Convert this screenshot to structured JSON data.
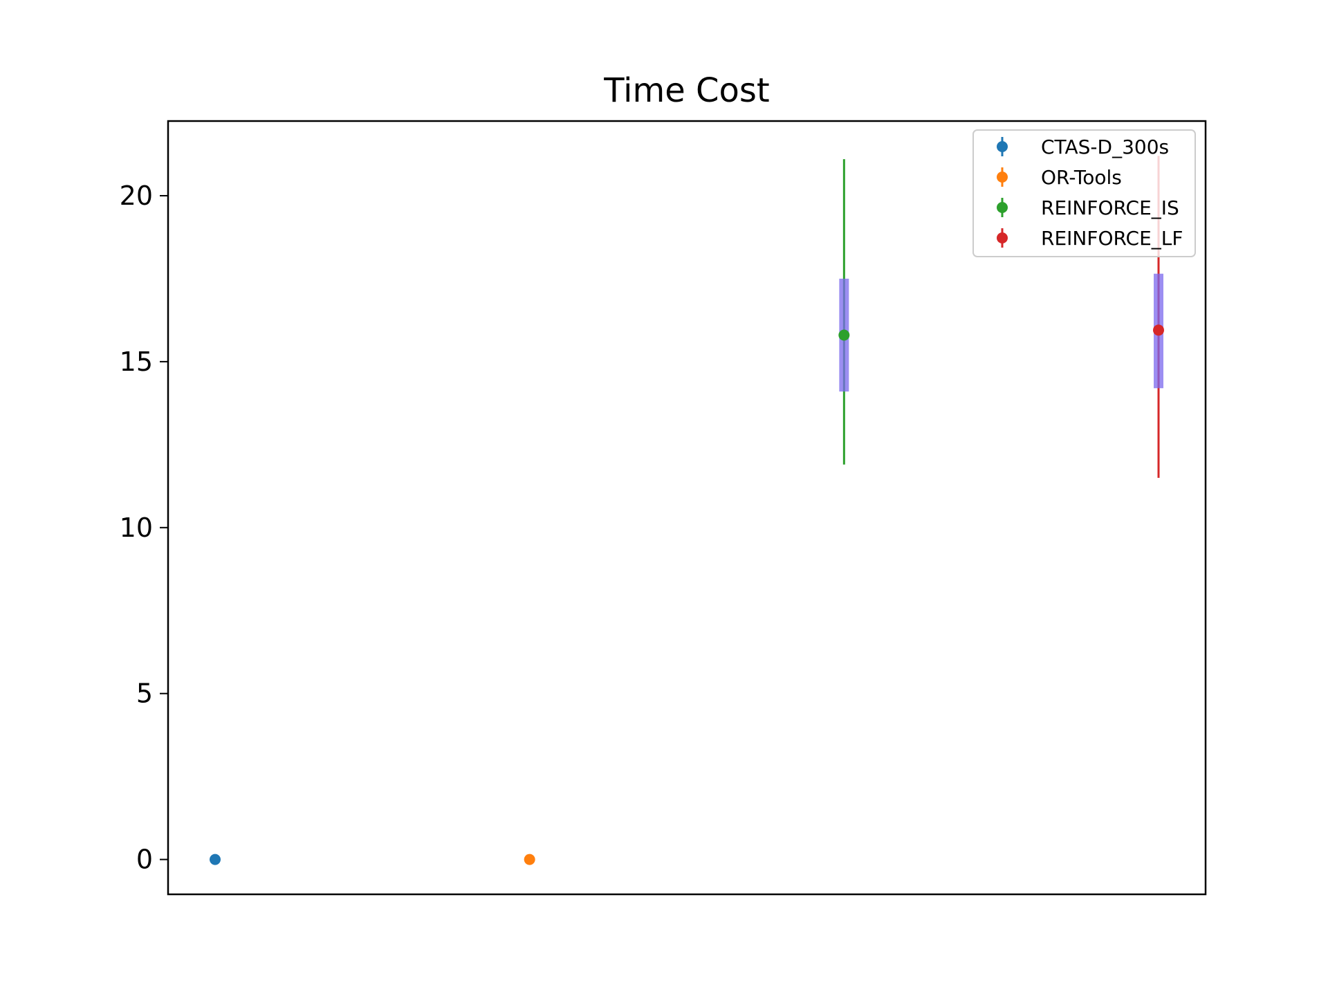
{
  "chart_data": {
    "type": "scatter",
    "title": "Time Cost",
    "xlabel": "",
    "ylabel": "",
    "ylim": [
      -1.05,
      22.25
    ],
    "yticks": [
      0,
      5,
      10,
      15,
      20
    ],
    "ytick_labels": [
      "0",
      "5",
      "10",
      "15",
      "20"
    ],
    "grid": false,
    "legend_position": "top-right",
    "series": [
      {
        "name": "CTAS-D_300s",
        "color": "#1f77b4",
        "value": 0.0,
        "errorbar": [
          0.0,
          0.0
        ],
        "box": null
      },
      {
        "name": "OR-Tools",
        "color": "#ff7f0e",
        "value": 0.0,
        "errorbar": [
          0.0,
          0.0
        ],
        "box": null
      },
      {
        "name": "REINFORCE_IS",
        "color": "#2ca02c",
        "value": 15.8,
        "errorbar": [
          11.9,
          21.1
        ],
        "box": [
          14.1,
          17.5
        ]
      },
      {
        "name": "REINFORCE_LF",
        "color": "#d62728",
        "value": 15.95,
        "errorbar": [
          11.5,
          21.2
        ],
        "box": [
          14.2,
          17.65
        ]
      }
    ],
    "box_color": "#7b68ee"
  }
}
